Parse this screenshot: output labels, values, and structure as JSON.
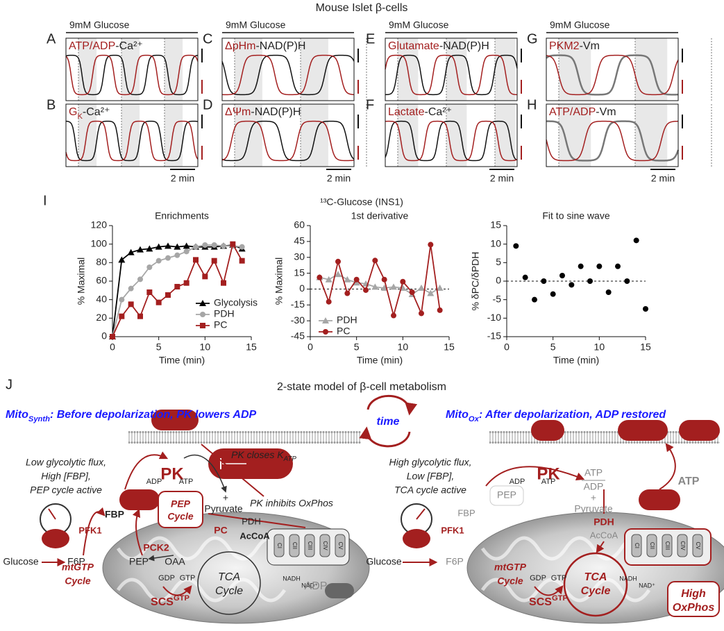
{
  "figure_title": "Mouse Islet β-cells",
  "panels": [
    {
      "letter": "A",
      "condition": "9mM Glucose",
      "red": "ATP/ADP",
      "black": "-Ca²⁺"
    },
    {
      "letter": "B",
      "red": "G",
      "sub": "K",
      "black": "-Ca²⁺",
      "scale": "2 min"
    },
    {
      "letter": "C",
      "condition": "9mM Glucose",
      "red": "ΔpHm",
      "black": "-NAD(P)H"
    },
    {
      "letter": "D",
      "red": "ΔΨm",
      "black": "-NAD(P)H",
      "scale": "2 min"
    },
    {
      "letter": "E",
      "condition": "9mM Glucose",
      "red": "Glutamate",
      "black": "-NAD(P)H"
    },
    {
      "letter": "F",
      "red": "Lactate",
      "black": "-Ca²⁺",
      "scale": "2 min"
    },
    {
      "letter": "G",
      "condition": "9mM Glucose",
      "red": "PKM2",
      "black": "-Vm"
    },
    {
      "letter": "H",
      "red": "ATP/ADP",
      "black": "-Vm",
      "scale": "2 min"
    }
  ],
  "panel_I": {
    "letter": "I",
    "title": "¹³C-Glucose (INS1)"
  },
  "chart_data": [
    {
      "type": "line",
      "title": "Enrichments",
      "x_label": "Time (min)",
      "y_label": "% Maximal",
      "xlim": [
        0,
        15
      ],
      "xticks": [
        0,
        5,
        10,
        15
      ],
      "ylim": [
        0,
        120
      ],
      "yticks": [
        0,
        20,
        40,
        60,
        80,
        100,
        120
      ],
      "legend": "lower right",
      "x": [
        0,
        1,
        2,
        3,
        4,
        5,
        6,
        7,
        8,
        9,
        10,
        11,
        12,
        13,
        14
      ],
      "series": [
        {
          "name": "Glycolysis",
          "color": "#000000",
          "marker": "triangle",
          "values": [
            0,
            83,
            91,
            94,
            95,
            97,
            98,
            97,
            98,
            97,
            97,
            97,
            98,
            99,
            95
          ]
        },
        {
          "name": "PDH",
          "color": "#a6a6a6",
          "marker": "circle",
          "values": [
            0,
            40,
            52,
            62,
            75,
            82,
            85,
            88,
            92,
            97,
            99,
            99,
            98,
            98,
            97
          ]
        },
        {
          "name": "PC",
          "color": "#a31f1f",
          "marker": "square",
          "values": [
            0,
            22,
            35,
            22,
            48,
            37,
            45,
            54,
            58,
            83,
            65,
            82,
            58,
            100,
            82
          ]
        }
      ]
    },
    {
      "type": "line",
      "title": "1st derivative",
      "x_label": "Time (min)",
      "y_label": "% Maximal",
      "xlim": [
        0,
        15
      ],
      "xticks": [
        0,
        5,
        10,
        15
      ],
      "ylim": [
        -45,
        60
      ],
      "yticks": [
        -45,
        -30,
        -15,
        0,
        15,
        30,
        45,
        60
      ],
      "legend": "lower left",
      "reference_line": 0,
      "x": [
        1,
        2,
        3,
        4,
        5,
        6,
        7,
        8,
        9,
        10,
        11,
        12,
        13,
        14
      ],
      "series": [
        {
          "name": "PDH",
          "color": "#a6a6a6",
          "marker": "triangle",
          "values": [
            11,
            9,
            14,
            9,
            6,
            5,
            2,
            1,
            2,
            1,
            -5,
            1,
            -4,
            1
          ]
        },
        {
          "name": "PC",
          "color": "#a31f1f",
          "marker": "circle",
          "values": [
            11,
            -12,
            26,
            -4,
            9,
            -1,
            27,
            9,
            -25,
            7,
            -3,
            -23,
            42,
            -20
          ]
        }
      ]
    },
    {
      "type": "scatter",
      "title": "Fit to sine wave",
      "x_label": "Time (min)",
      "y_label": "% δPC/δPDH",
      "xlim": [
        0,
        15
      ],
      "xticks": [
        0,
        5,
        10,
        15
      ],
      "ylim": [
        -15,
        15
      ],
      "yticks": [
        -15,
        -10,
        -5,
        0,
        5,
        10,
        15
      ],
      "reference_line": 0,
      "x": [
        1,
        2,
        3,
        4,
        5,
        6,
        7,
        8,
        9,
        10,
        11,
        12,
        13,
        14,
        15
      ],
      "series": [
        {
          "color": "#000000",
          "marker": "circle",
          "values": [
            9.5,
            1,
            -5,
            0,
            -3.5,
            1.5,
            -1,
            4,
            0,
            4,
            -3,
            4,
            0,
            11,
            -7.5
          ]
        }
      ]
    }
  ],
  "diagram": {
    "letter": "J",
    "title": "2-state model of β-cell metabolism",
    "time": "time",
    "left": {
      "header_main": "Mito",
      "header_sub": "Synth",
      "header_rest": ": Before depolarization, PK lowers ADP",
      "flux": [
        "Low glycolytic flux,",
        "High [FBP],",
        "PEP cycle active"
      ],
      "pk": "PK",
      "katp": "PK closes K",
      "katp_sub": "ATP",
      "adp": "ADP",
      "atp": "ATP",
      "pep_cycle": [
        "PEP",
        "Cycle"
      ],
      "plus": "+",
      "pyruvate": "Pyruvate",
      "inhibits": "PK inhibits OxPhos",
      "pdh": "PDH",
      "pc": "PC",
      "accoa": "AcCoA",
      "fbp": "FBP",
      "pfk1": "PFK1",
      "glucose": "Glucose",
      "f6p": "F6P",
      "pck2": "PCK2",
      "pep": "PEP",
      "oaa": "OAA",
      "tca": [
        "TCA",
        "Cycle"
      ],
      "mtgtp": [
        "mtGTP",
        "Cycle"
      ],
      "gdp": "GDP",
      "gtp": "GTP",
      "scs": "SCS",
      "scs_sup": "GTP",
      "nadh": "NADH",
      "nad": "NAD⁺",
      "adp2": "ADP",
      "complexes": [
        "CI",
        "CII",
        "CIII",
        "CIV",
        "CV"
      ]
    },
    "right": {
      "header_main": "Mito",
      "header_sub": "Ox",
      "header_rest": ": After depolarization, ADP restored",
      "flux": [
        "High glycolytic flux,",
        "Low [FBP],",
        "TCA cycle active"
      ],
      "pk": "PK",
      "adp": "ADP",
      "atp": "ATP",
      "ratio_num": "ATP",
      "ratio_den": "ADP",
      "plus": "+",
      "pyruvate": "Pyruvate",
      "pep": "PEP",
      "fbp": "FBP",
      "pfk1": "PFK1",
      "glucose": "Glucose",
      "f6p": "F6P",
      "pdh": "PDH",
      "accoa": "AcCoA",
      "nadh": "NADH",
      "nad": "NAD⁺",
      "tca": [
        "TCA",
        "Cycle"
      ],
      "mtgtp": [
        "mtGTP",
        "Cycle"
      ],
      "gdp": "GDP",
      "gtp": "GTP",
      "scs": "SCS",
      "scs_sup": "GTP",
      "oxphos": [
        "High",
        "OxPhos"
      ],
      "atp2": "ATP",
      "complexes": [
        "CI",
        "CII",
        "CIII",
        "CIV",
        "CV"
      ]
    }
  }
}
